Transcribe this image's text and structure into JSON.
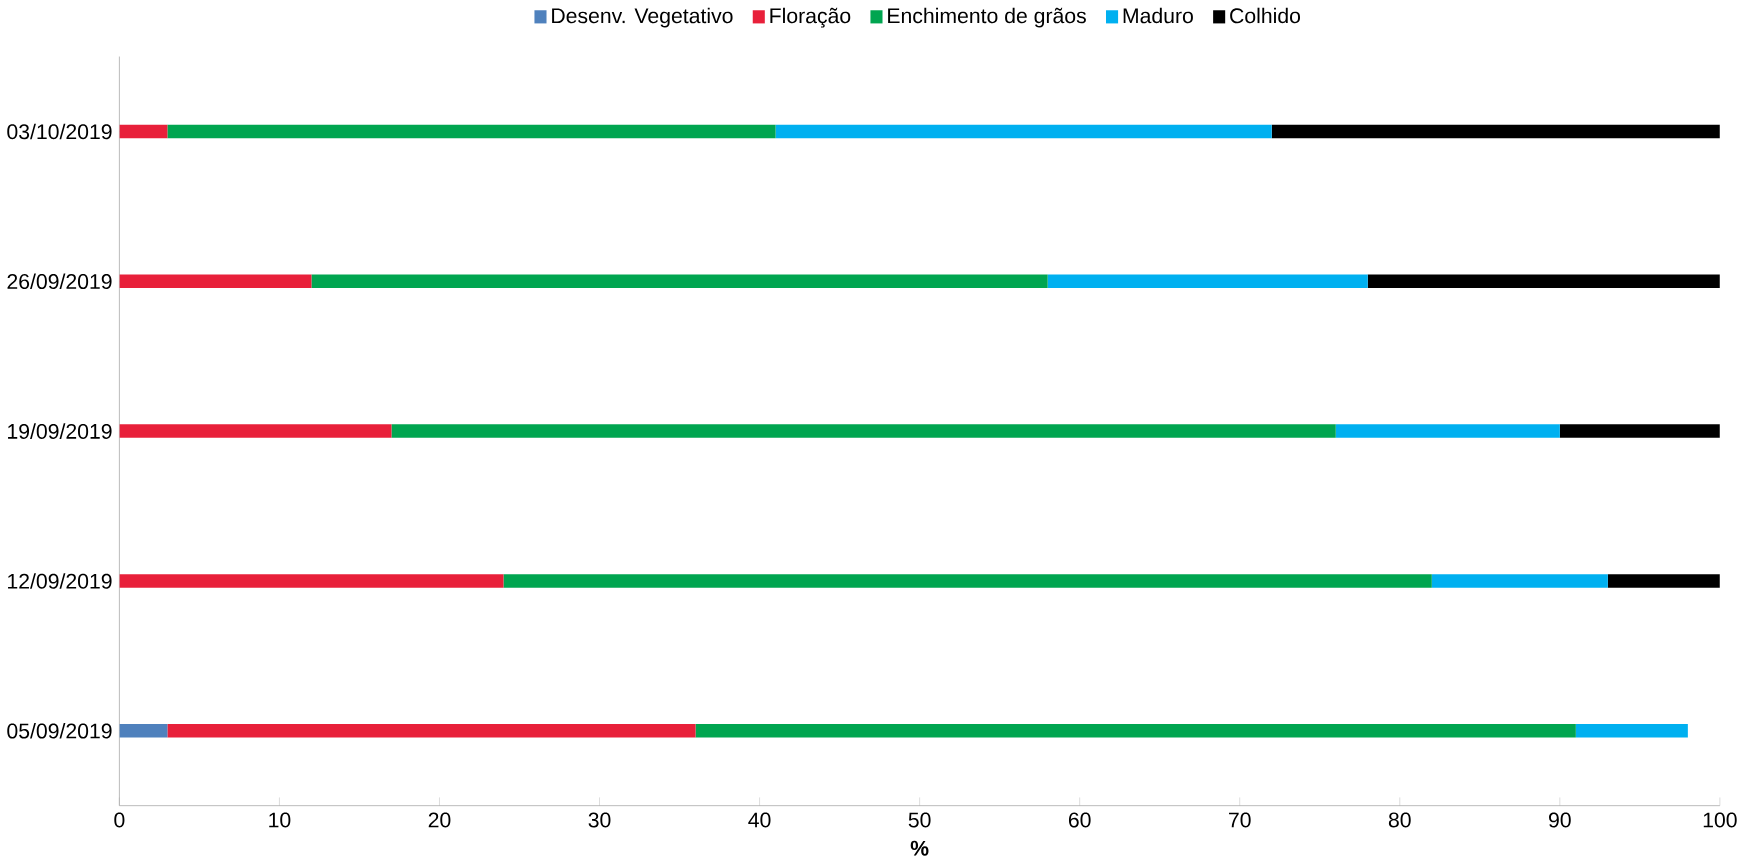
{
  "chart_data": {
    "type": "bar",
    "orientation": "horizontal",
    "stacked": true,
    "xlabel": "%",
    "categories": [
      "03/10/2019",
      "26/09/2019",
      "19/09/2019",
      "12/09/2019",
      "05/09/2019"
    ],
    "series": [
      {
        "name": "Desenv. Vegetativo",
        "color": "#4f81bd",
        "values": [
          0,
          0,
          0,
          0,
          3
        ]
      },
      {
        "name": "Floração",
        "color": "#e8203a",
        "values": [
          3,
          12,
          17,
          24,
          33
        ]
      },
      {
        "name": "Enchimento de grãos",
        "color": "#00a550",
        "values": [
          38,
          46,
          59,
          58,
          55
        ]
      },
      {
        "name": "Maduro",
        "color": "#00b0f0",
        "values": [
          31,
          20,
          14,
          11,
          7
        ]
      },
      {
        "name": "Colhido",
        "color": "#000000",
        "values": [
          28,
          22,
          10,
          7,
          0
        ]
      }
    ],
    "xlim": [
      0,
      100
    ],
    "xticks": [
      0,
      10,
      20,
      30,
      40,
      50,
      60,
      70,
      80,
      90,
      100
    ],
    "legend": "top",
    "grid": false
  }
}
